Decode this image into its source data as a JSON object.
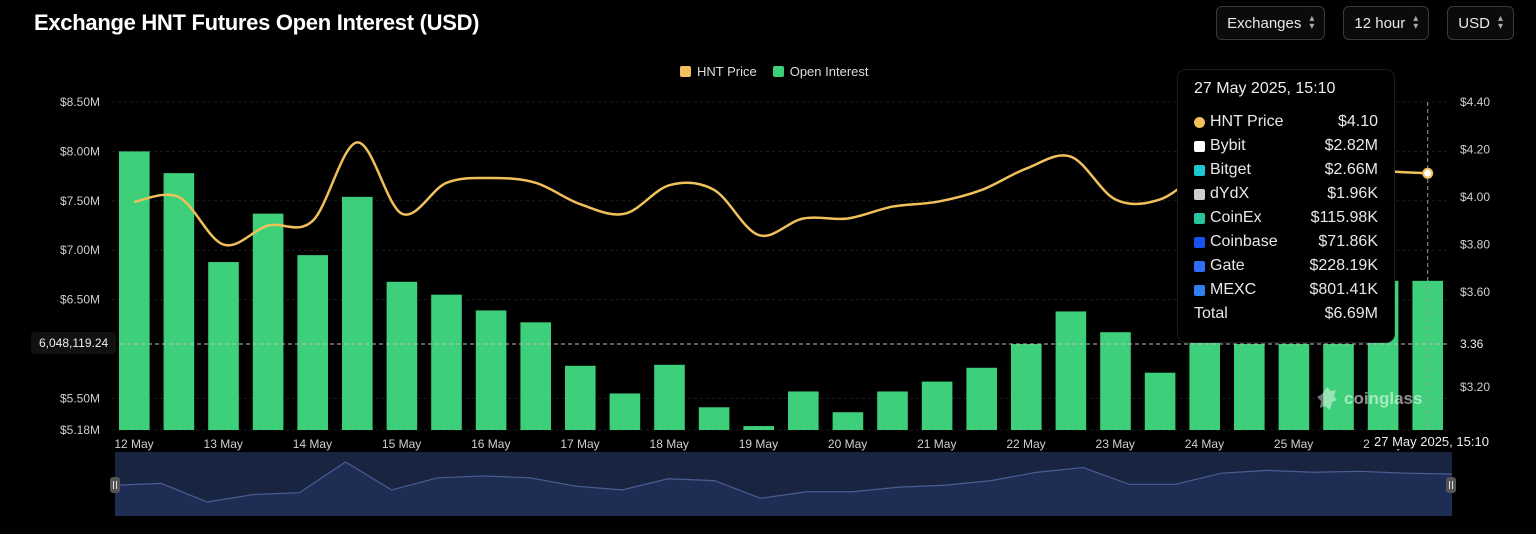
{
  "title": "Exchange HNT Futures Open Interest (USD)",
  "controls": [
    {
      "label": "Exchanges"
    },
    {
      "label": "12 hour"
    },
    {
      "label": "USD"
    }
  ],
  "legend": [
    {
      "label": "HNT Price",
      "color": "#f0c05a"
    },
    {
      "label": "Open Interest",
      "color": "#3ecf7a"
    }
  ],
  "chart_data": {
    "type": "bar",
    "x_labels": [
      "12 May",
      "13 May",
      "14 May",
      "15 May",
      "16 May",
      "17 May",
      "18 May",
      "19 May",
      "20 May",
      "21 May",
      "22 May",
      "23 May",
      "24 May",
      "25 May",
      "26 May"
    ],
    "y_left_ticks": [
      "$8.50M",
      "$8.00M",
      "$7.50M",
      "$7.00M",
      "$6.50M",
      "$5.50M",
      "$5.18M"
    ],
    "y_left_tick_values": [
      8.5,
      8.0,
      7.5,
      7.0,
      6.5,
      5.5,
      5.18
    ],
    "y_left_range": [
      5.18,
      8.5
    ],
    "y_right_ticks": [
      "$4.40",
      "$4.20",
      "$4.00",
      "$3.80",
      "$3.60",
      "$3.20"
    ],
    "y_right_tick_values": [
      4.4,
      4.2,
      4.0,
      3.8,
      3.6,
      3.2
    ],
    "y_right_range": [
      3.02,
      4.4
    ],
    "series": [
      {
        "name": "Open Interest",
        "color": "#3ecf7a",
        "values": [
          8.0,
          7.78,
          6.88,
          7.37,
          6.95,
          7.54,
          6.68,
          6.55,
          6.39,
          6.27,
          5.83,
          5.55,
          5.84,
          5.41,
          5.22,
          5.57,
          5.36,
          5.57,
          5.67,
          5.81,
          6.05,
          6.38,
          6.17,
          5.76,
          6.38,
          6.05,
          6.05,
          6.05,
          6.69,
          6.69
        ]
      },
      {
        "name": "HNT Price",
        "color": "#f0c05a",
        "values": [
          3.98,
          4.0,
          3.8,
          3.88,
          3.9,
          4.23,
          3.93,
          4.06,
          4.08,
          4.06,
          3.97,
          3.93,
          4.05,
          4.03,
          3.84,
          3.91,
          3.91,
          3.96,
          3.98,
          4.03,
          4.12,
          4.17,
          3.99,
          3.99,
          4.11,
          4.14,
          4.12,
          4.13,
          4.11,
          4.1
        ]
      }
    ],
    "grid": true,
    "legend_position": "top-center"
  },
  "tooltip": {
    "date": "27 May 2025, 15:10",
    "rows": [
      {
        "label": "HNT Price",
        "value": "$4.10",
        "icon": "price-dot-icon",
        "color": "#f0c05a"
      },
      {
        "label": "Bybit",
        "value": "$2.82M",
        "icon": "bybit-icon",
        "color": "#ffffff"
      },
      {
        "label": "Bitget",
        "value": "$2.66M",
        "icon": "bitget-icon",
        "color": "#1fc7d4"
      },
      {
        "label": "dYdX",
        "value": "$1.96K",
        "icon": "dydx-icon",
        "color": "#cfcfcf"
      },
      {
        "label": "CoinEx",
        "value": "$115.98K",
        "icon": "coinex-icon",
        "color": "#27c4a0"
      },
      {
        "label": "Coinbase",
        "value": "$71.86K",
        "icon": "coinbase-icon",
        "color": "#1652f0"
      },
      {
        "label": "Gate",
        "value": "$228.19K",
        "icon": "gate-icon",
        "color": "#2f6df6"
      },
      {
        "label": "MEXC",
        "value": "$801.41K",
        "icon": "mexc-icon",
        "color": "#2f80ed"
      }
    ],
    "total_label": "Total",
    "total_value": "$6.69M"
  },
  "crosshair": {
    "left_value": "6,048,119.24",
    "right_value": "3.36",
    "date": "27 May 2025, 15:10"
  },
  "watermark": "coinglass"
}
